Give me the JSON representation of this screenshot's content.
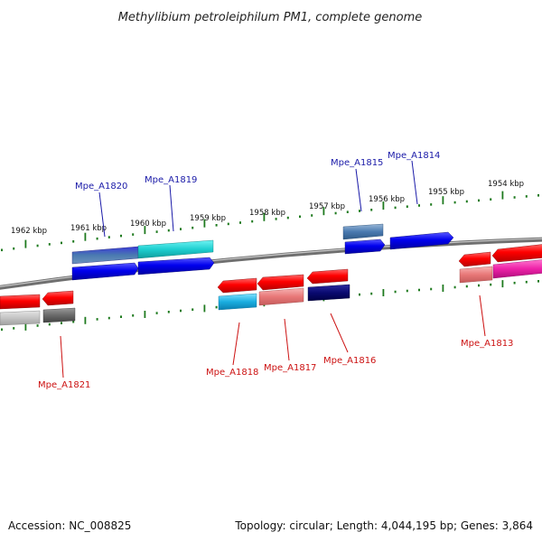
{
  "title": "Methylibium petroleiphilum PM1, complete genome",
  "footer": {
    "accession": "Accession: NC_008825",
    "info": "Topology: circular; Length: 4,044,195 bp; Genes: 3,864"
  },
  "scale_labels": [
    "1962 kbp",
    "1961 kbp",
    "1960 kbp",
    "1959 kbp",
    "1958 kbp",
    "1957 kbp",
    "1956 kbp",
    "1955 kbp",
    "1954 kbp"
  ],
  "gene_labels": {
    "forward": [
      "Mpe_A1820",
      "Mpe_A1819",
      "Mpe_A1815",
      "Mpe_A1814"
    ],
    "reverse": [
      "Mpe_A1821",
      "Mpe_A1818",
      "Mpe_A1817",
      "Mpe_A1816",
      "Mpe_A1813"
    ]
  },
  "colors": {
    "forward_label": "#1a1aa8",
    "reverse_label": "#cc1111",
    "backbone": "#777777",
    "ticks": "#1e7a1e"
  }
}
